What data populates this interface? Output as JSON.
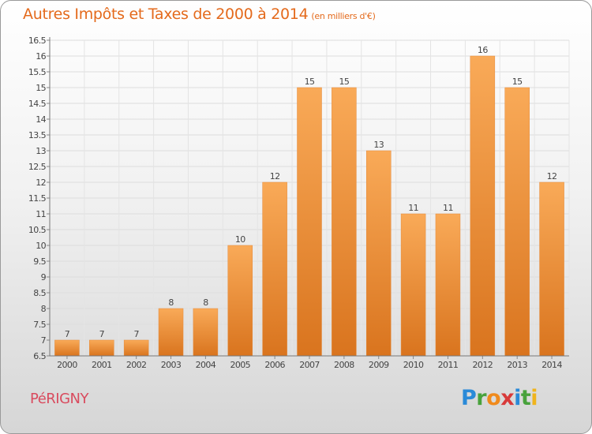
{
  "title": "Autres Impôts et Taxes de 2000 à 2014",
  "unit": "(en milliers d'€)",
  "town": "PéRIGNY",
  "logo": {
    "letters": [
      "P",
      "r",
      "o",
      "x",
      "i",
      "t",
      "i"
    ],
    "colors": [
      "#2a8ad8",
      "#48a23c",
      "#f08a1c",
      "#d83a3a",
      "#2a8ad8",
      "#48a23c",
      "#f0b41c"
    ]
  },
  "colors": {
    "bar_light": "#f9aa58",
    "bar_dark": "#d9741e",
    "title": "#e46a1c",
    "town": "#d94b5e"
  },
  "chart_data": {
    "type": "bar",
    "categories": [
      "2000",
      "2001",
      "2002",
      "2003",
      "2004",
      "2005",
      "2006",
      "2007",
      "2008",
      "2009",
      "2010",
      "2011",
      "2012",
      "2013",
      "2014"
    ],
    "values": [
      7,
      7,
      7,
      8,
      8,
      10,
      12,
      15,
      15,
      13,
      11,
      11,
      16,
      15,
      12
    ],
    "data_labels": [
      "7",
      "7",
      "7",
      "8",
      "8",
      "10",
      "12",
      "15",
      "15",
      "13",
      "11",
      "11",
      "16",
      "15",
      "12"
    ],
    "yticks": [
      "6.5",
      "7",
      "7.5",
      "8",
      "8.5",
      "9",
      "9.5",
      "10",
      "10.5",
      "11",
      "11.5",
      "12",
      "12.5",
      "13",
      "13.5",
      "14",
      "14.5",
      "15",
      "15.5",
      "16",
      "16.5"
    ],
    "ylim": [
      6.5,
      16.5
    ],
    "grid": true,
    "title": "Autres Impôts et Taxes de 2000 à 2014",
    "xlabel": "",
    "ylabel": ""
  }
}
